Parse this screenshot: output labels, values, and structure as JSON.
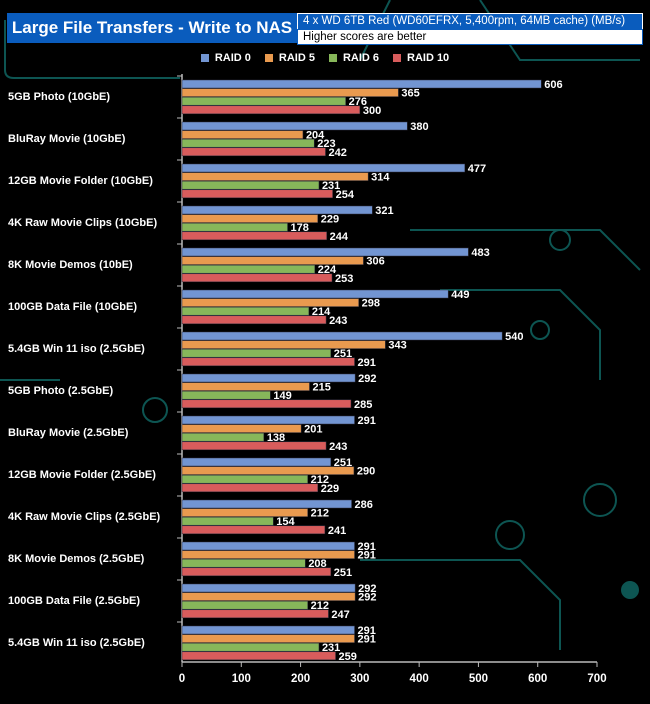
{
  "header": {
    "title": "Large File Transfers - Write to NAS",
    "subtitle": "4 x WD 6TB Red (WD60EFRX, 5,400rpm, 64MB cache) (MB/s)",
    "note": "Higher scores are better"
  },
  "colors": {
    "RAID 0": "#7295d2",
    "RAID 5": "#e99a4f",
    "RAID 6": "#87b75a",
    "RAID 10": "#d85c5c",
    "title_bg": "#0a5cbd"
  },
  "chart_data": {
    "type": "bar",
    "orientation": "horizontal",
    "title": "Large File Transfers - Write to NAS",
    "xlim": [
      0,
      700
    ],
    "xticks": [
      0,
      100,
      200,
      300,
      400,
      500,
      600,
      700
    ],
    "legend": "top",
    "categories": [
      "5GB Photo (10GbE)",
      "BluRay Movie (10GbE)",
      "12GB Movie Folder (10GbE)",
      "4K Raw Movie Clips (10GbE)",
      "8K Movie Demos (10bE)",
      "100GB Data File (10GbE)",
      "5.4GB Win 11 iso (2.5GbE)",
      "5GB Photo (2.5GbE)",
      "BluRay Movie (2.5GbE)",
      "12GB Movie Folder (2.5GbE)",
      "4K Raw Movie Clips (2.5GbE)",
      "8K Movie Demos (2.5GbE)",
      "100GB Data File (2.5GbE)",
      "5.4GB Win 11 iso (2.5GbE)"
    ],
    "series": [
      {
        "name": "RAID 0",
        "color": "#7295d2",
        "values": [
          606,
          380,
          477,
          321,
          483,
          449,
          540,
          292,
          291,
          251,
          286,
          291,
          292,
          291
        ]
      },
      {
        "name": "RAID 5",
        "color": "#e99a4f",
        "values": [
          365,
          204,
          314,
          229,
          306,
          298,
          343,
          215,
          201,
          290,
          212,
          291,
          292,
          291
        ]
      },
      {
        "name": "RAID 6",
        "color": "#87b75a",
        "values": [
          276,
          223,
          231,
          178,
          224,
          214,
          251,
          149,
          138,
          212,
          154,
          208,
          212,
          231
        ]
      },
      {
        "name": "RAID 10",
        "color": "#d85c5c",
        "values": [
          300,
          242,
          254,
          244,
          253,
          243,
          291,
          285,
          243,
          229,
          241,
          251,
          247,
          259
        ]
      }
    ]
  }
}
